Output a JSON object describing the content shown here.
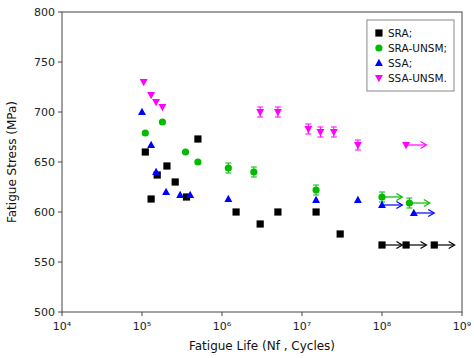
{
  "chart_data": {
    "type": "scatter",
    "xlabel": "Fatigue Life (Nf , Cycles)",
    "ylabel": "Fatigue Stress (MPa)",
    "log": "x",
    "xlim": [
      10000,
      1000000000
    ],
    "xticks": [
      {
        "value": 10000,
        "label": "10⁴"
      },
      {
        "value": 100000,
        "label": "10⁵"
      },
      {
        "value": 1000000,
        "label": "10⁶"
      },
      {
        "value": 10000000,
        "label": "10⁷"
      },
      {
        "value": 100000000,
        "label": "10⁸"
      },
      {
        "value": 1000000000,
        "label": "10⁹"
      }
    ],
    "ylim": [
      500,
      800
    ],
    "yticks": [
      500,
      550,
      600,
      650,
      700,
      750,
      800
    ],
    "grid": false,
    "legend": "upper right",
    "series": [
      {
        "name": "SRA;",
        "color": "#000000",
        "marker": "square",
        "x": [
          110000,
          130000,
          155000,
          205000,
          260000,
          360000,
          500000,
          1500000,
          3000000,
          5000000,
          15000000,
          30000000,
          100000000,
          200000000,
          450000000
        ],
        "values": [
          660,
          613,
          637,
          646,
          630,
          615,
          673,
          600,
          588,
          600,
          600,
          578,
          567,
          567,
          567
        ],
        "runout": [
          false,
          false,
          false,
          false,
          false,
          false,
          false,
          false,
          false,
          false,
          false,
          false,
          true,
          true,
          true
        ]
      },
      {
        "name": "SRA-UNSM;",
        "color": "#00bb00",
        "marker": "circle",
        "x": [
          110000,
          180000,
          350000,
          500000,
          1200000,
          2500000,
          15000000,
          100000000,
          220000000
        ],
        "values": [
          679,
          690,
          660,
          650,
          644,
          640,
          622,
          615,
          609
        ],
        "runout": [
          false,
          false,
          false,
          false,
          false,
          false,
          false,
          true,
          true
        ],
        "yerr": [
          0,
          0,
          0,
          0,
          5,
          5,
          5,
          5,
          5
        ]
      },
      {
        "name": "SSA;",
        "color": "#0000ff",
        "marker": "triangle-up",
        "x": [
          100000,
          130000,
          150000,
          200000,
          300000,
          400000,
          1200000,
          15000000,
          50000000,
          100000000,
          250000000
        ],
        "values": [
          700,
          667,
          640,
          620,
          617,
          617,
          613,
          612,
          612,
          607,
          599
        ],
        "runout": [
          false,
          false,
          false,
          false,
          false,
          false,
          false,
          false,
          false,
          true,
          true
        ]
      },
      {
        "name": "SSA-UNSM.",
        "color": "#ff00ff",
        "marker": "triangle-down",
        "x": [
          105000,
          130000,
          150000,
          180000,
          3000000,
          5000000,
          12000000,
          17000000,
          25000000,
          50000000,
          200000000
        ],
        "values": [
          730,
          717,
          710,
          705,
          700,
          700,
          683,
          680,
          680,
          667,
          667
        ],
        "runout": [
          false,
          false,
          false,
          false,
          false,
          false,
          false,
          false,
          false,
          false,
          true
        ],
        "yerr": [
          0,
          0,
          0,
          0,
          5,
          5,
          5,
          5,
          5,
          5,
          0
        ]
      }
    ]
  }
}
